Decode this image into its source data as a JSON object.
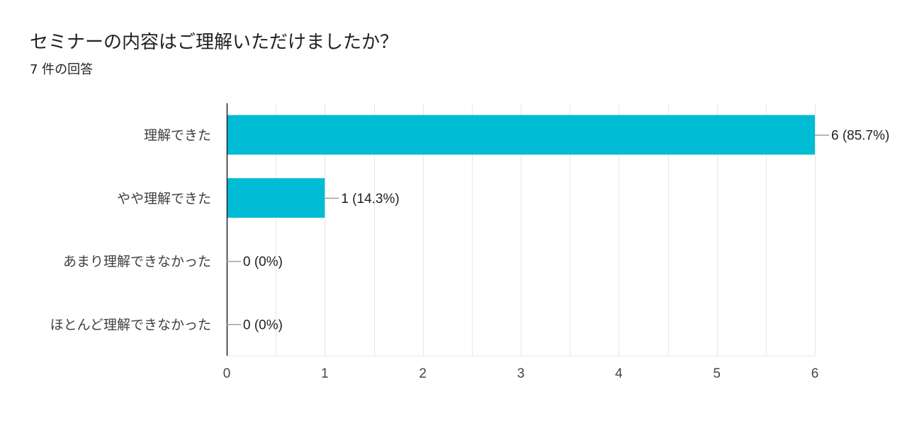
{
  "header": {
    "title": "セミナーの内容はご理解いただけましたか？",
    "response_count": "7 件の回答"
  },
  "chart_data": {
    "type": "bar",
    "orientation": "horizontal",
    "categories": [
      "理解できた",
      "やや理解できた",
      "あまり理解できなかった",
      "ほとんど理解できなかった"
    ],
    "values": [
      6,
      1,
      0,
      0
    ],
    "data_labels": [
      "6 (85.7%)",
      "1 (14.3%)",
      "0 (0%)",
      "0 (0%)"
    ],
    "xlim": [
      0,
      6
    ],
    "xticks": [
      0,
      1,
      2,
      3,
      4,
      5,
      6
    ],
    "grid": true,
    "bar_color": "#00bcd4",
    "axis_color": "#202124",
    "grid_color": "#e8e8e8",
    "leader_color": "#9e9e9e"
  }
}
